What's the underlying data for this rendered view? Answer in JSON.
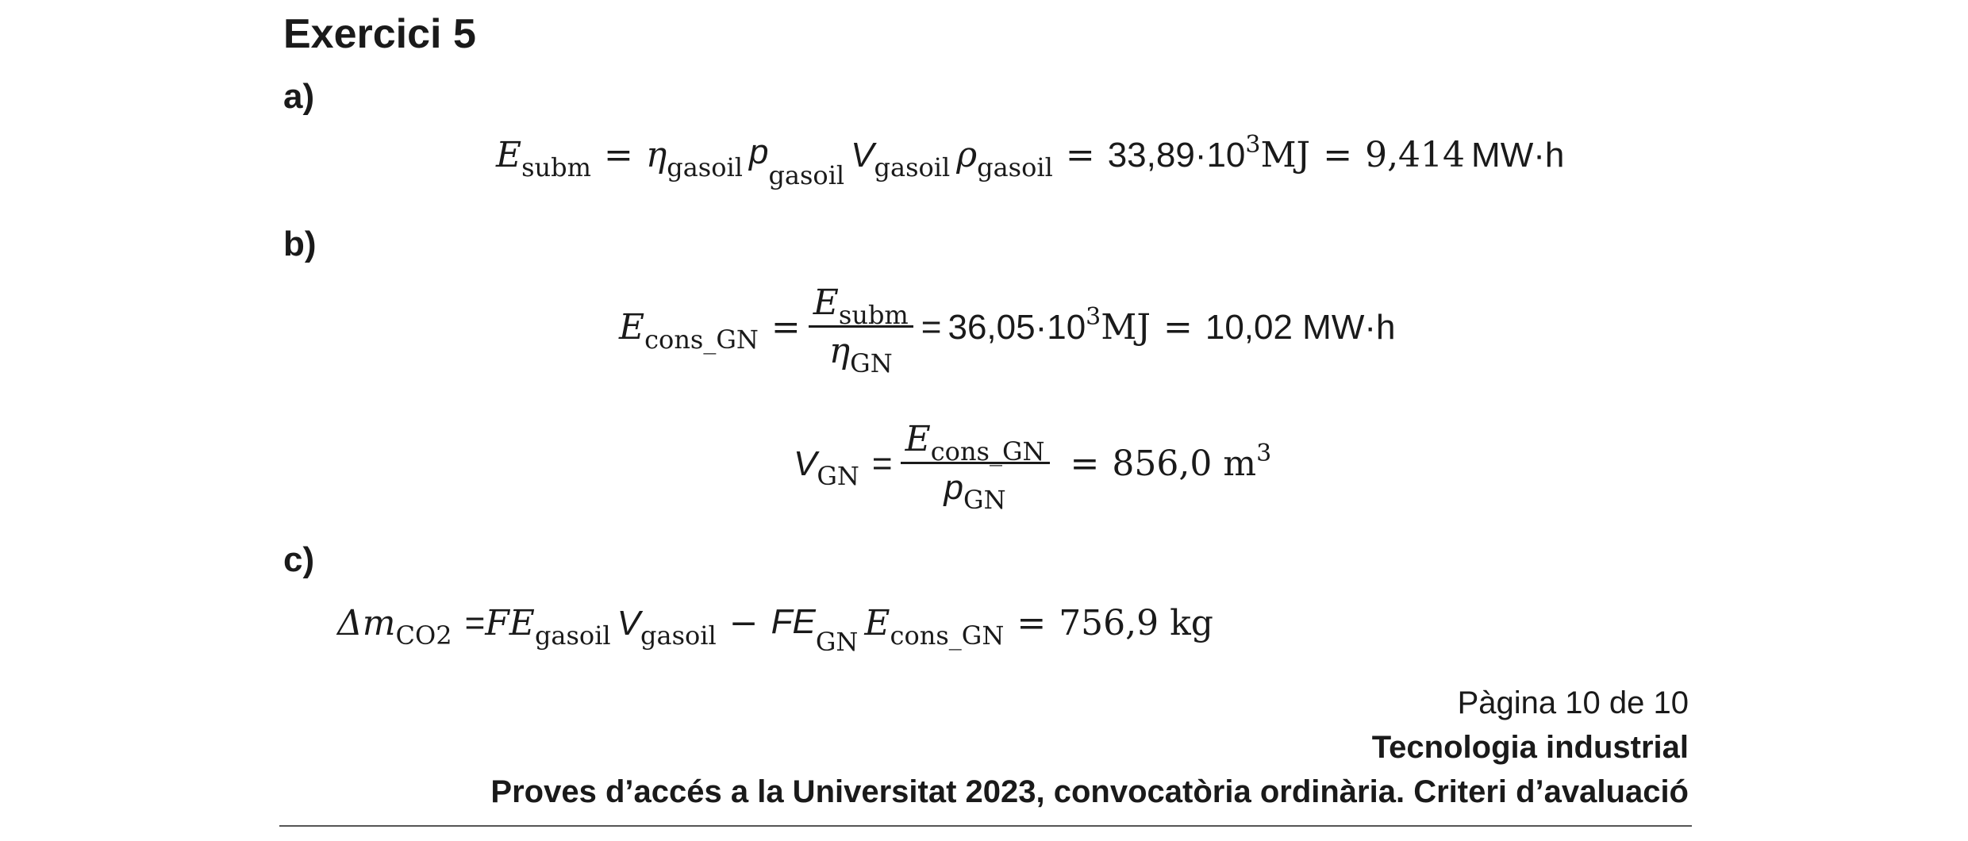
{
  "document": {
    "title": "Exercici 5",
    "parts": {
      "a": "a)",
      "b": "b)",
      "c": "c)"
    }
  },
  "eq_a": {
    "lhs": "E",
    "lhs_sub": "subm",
    "eq": "=",
    "t1": "η",
    "t1_sub": "gasoil",
    "t2": "p",
    "t2_sub": "gasoil",
    "t3": "V",
    "t3_sub": "gasoil",
    "t4": "ρ",
    "t4_sub": "gasoil",
    "eq2": "=",
    "r1": "33,89·10",
    "r1_sup": "3",
    "r1_unit": "MJ",
    "eq3": "=",
    "r2": "9,414",
    "r2_unit": "MW·h"
  },
  "eq_b1": {
    "lhs": "E",
    "lhs_sub": "cons_GN",
    "eq": "=",
    "num": "E",
    "num_sub": "subm",
    "den": "η",
    "den_sub": "GN",
    "eq2": "=",
    "r1": "36,05·10",
    "r1_sup": "3",
    "r1_unit": "MJ",
    "eq3": "=",
    "r2": "10,02 MW·h"
  },
  "eq_b2": {
    "lhs": "V",
    "lhs_sub": "GN",
    "eq": "=",
    "num": "E",
    "num_sub": "cons_GN",
    "den": "p",
    "den_sub": "GN",
    "eq2": "=",
    "r1": "856,0 m",
    "r1_sup": "3"
  },
  "eq_c": {
    "lhs": "Δm",
    "lhs_sub": "CO2",
    "eq": "=",
    "t1": "FE",
    "t1_sub": "gasoil",
    "t2": "V",
    "t2_sub": "gasoil",
    "minus": "−",
    "t3": "FE",
    "t3_sub": "GN",
    "t4": "E",
    "t4_sub": "cons_GN",
    "eq2": "=",
    "r1": "756,9 kg"
  },
  "footer": {
    "page": "Pàgina 10 de 10",
    "subject": "Tecnologia industrial",
    "exam": "Proves d’accés a la Universitat 2023, convocatòria ordinària. Criteri d’avaluació"
  }
}
